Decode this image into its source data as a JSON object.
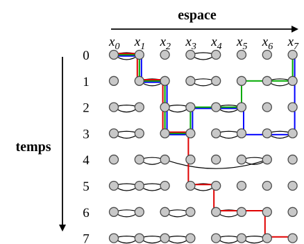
{
  "diagram": {
    "space_label": "espace",
    "time_label": "temps",
    "space_positions": [
      {
        "base": "x",
        "sub": "0"
      },
      {
        "base": "x",
        "sub": "1"
      },
      {
        "base": "x",
        "sub": "2"
      },
      {
        "base": "x",
        "sub": "3"
      },
      {
        "base": "x",
        "sub": "4"
      },
      {
        "base": "x",
        "sub": "5"
      },
      {
        "base": "x",
        "sub": "6"
      },
      {
        "base": "x",
        "sub": "7"
      }
    ],
    "time_steps": [
      "0",
      "1",
      "2",
      "3",
      "4",
      "5",
      "6",
      "7"
    ],
    "pairings": [
      [
        [
          0,
          1
        ],
        [
          3,
          4
        ]
      ],
      [
        [
          1,
          2
        ],
        [
          3,
          4
        ],
        [
          6,
          7
        ]
      ],
      [
        [
          0,
          1
        ],
        [
          2,
          3
        ],
        [
          4,
          5
        ]
      ],
      [
        [
          0,
          1
        ],
        [
          4,
          5
        ],
        [
          6,
          7
        ]
      ],
      [
        [
          1,
          2
        ],
        [
          5,
          6
        ]
      ],
      [
        [
          0,
          1
        ],
        [
          1,
          2
        ],
        [
          3,
          4
        ]
      ],
      [
        [
          0,
          1
        ],
        [
          2,
          3
        ],
        [
          4,
          5
        ]
      ],
      [
        [
          0,
          1
        ],
        [
          1,
          2
        ],
        [
          2,
          3
        ],
        [
          4,
          5
        ],
        [
          5,
          6
        ]
      ]
    ],
    "long_links": [
      {
        "row": 4,
        "from": 2,
        "to": 6
      }
    ],
    "trajectories": [
      {
        "color": "#0000ff",
        "points": [
          [
            0,
            0
          ],
          [
            1,
            0
          ],
          [
            1,
            1
          ],
          [
            2,
            1
          ],
          [
            2,
            3
          ],
          [
            3,
            3
          ],
          [
            3,
            2
          ],
          [
            5,
            2
          ],
          [
            5,
            3
          ],
          [
            7,
            3
          ],
          [
            7,
            0
          ]
        ]
      },
      {
        "color": "#00aa00",
        "points": [
          [
            0,
            0
          ],
          [
            1,
            0
          ],
          [
            1,
            1
          ],
          [
            2,
            1
          ],
          [
            2,
            3
          ],
          [
            3,
            3
          ],
          [
            3,
            2
          ],
          [
            4,
            2
          ],
          [
            5,
            2
          ],
          [
            5,
            1
          ],
          [
            7,
            1
          ],
          [
            7,
            0
          ]
        ]
      },
      {
        "color": "#e00000",
        "points": [
          [
            0,
            0
          ],
          [
            1,
            0
          ],
          [
            1,
            1
          ],
          [
            2,
            1
          ],
          [
            2,
            3
          ],
          [
            3,
            3
          ],
          [
            3,
            5
          ],
          [
            4,
            5
          ],
          [
            4,
            6
          ],
          [
            5,
            6
          ],
          [
            6,
            6
          ],
          [
            6,
            7
          ],
          [
            7,
            7
          ]
        ]
      }
    ]
  }
}
